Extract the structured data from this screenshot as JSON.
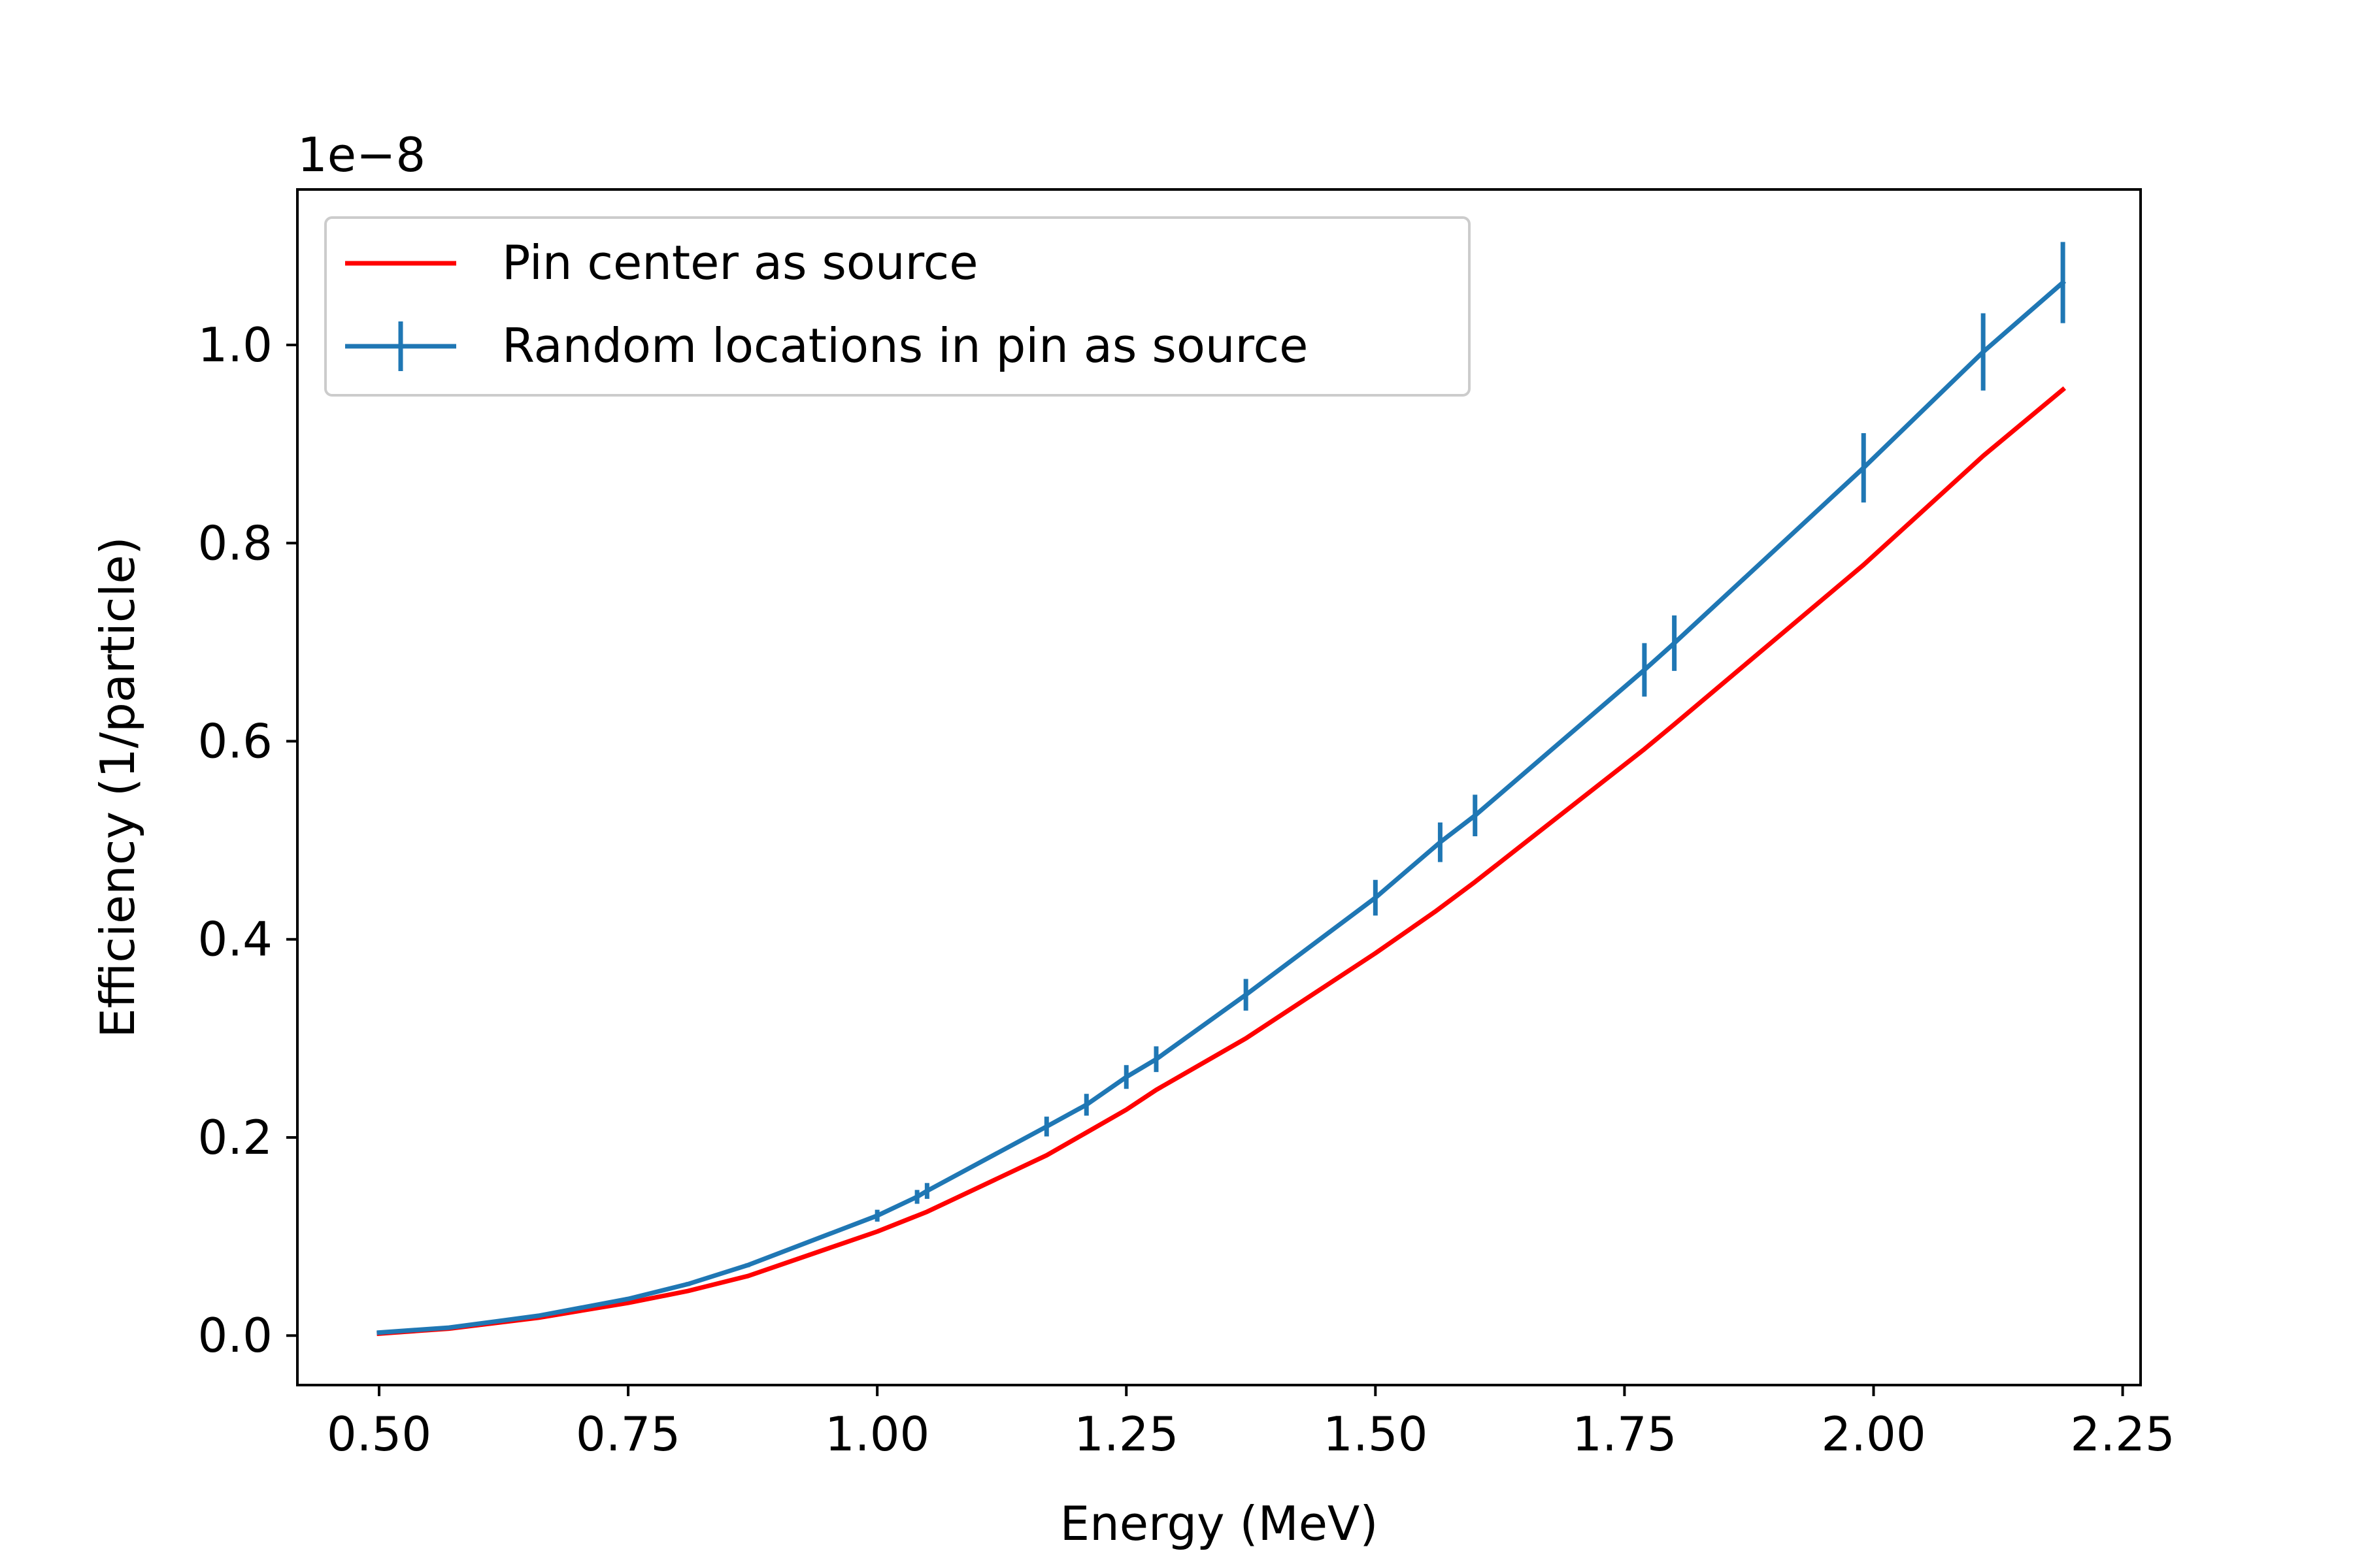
{
  "chart_data": {
    "type": "line",
    "title": "",
    "xlabel": "Energy (MeV)",
    "ylabel": "Efficiency (1/particle)",
    "y_offset_label": "1e−8",
    "xlim": [
      0.418,
      2.268
    ],
    "ylim": [
      -0.05,
      1.157
    ],
    "x_ticks": [
      0.5,
      0.75,
      1.0,
      1.25,
      1.5,
      1.75,
      2.0,
      2.25
    ],
    "x_tick_labels": [
      "0.50",
      "0.75",
      "1.00",
      "1.25",
      "1.50",
      "1.75",
      "2.00",
      "2.25"
    ],
    "y_ticks": [
      0.0,
      0.2,
      0.4,
      0.6,
      0.8,
      1.0
    ],
    "y_tick_labels": [
      "0.0",
      "0.2",
      "0.4",
      "0.6",
      "0.8",
      "1.0"
    ],
    "grid": false,
    "legend_position": "top-left",
    "series": [
      {
        "name": "Pin center as source",
        "color": "#ff0000",
        "errorbars": false,
        "x": [
          0.5,
          0.57,
          0.66,
          0.75,
          0.81,
          0.87,
          1.0,
          1.05,
          1.17,
          1.21,
          1.25,
          1.28,
          1.37,
          1.5,
          1.56,
          1.6,
          1.77,
          1.8,
          1.99,
          2.11,
          2.19
        ],
        "y": [
          0.002,
          0.007,
          0.018,
          0.033,
          0.045,
          0.06,
          0.105,
          0.125,
          0.182,
          0.205,
          0.228,
          0.248,
          0.3,
          0.386,
          0.428,
          0.458,
          0.592,
          0.617,
          0.778,
          0.888,
          0.955
        ]
      },
      {
        "name": "Random locations in pin as source",
        "color": "#1f77b4",
        "errorbars": true,
        "x": [
          0.5,
          0.57,
          0.66,
          0.75,
          0.81,
          0.87,
          1.0,
          1.04,
          1.05,
          1.17,
          1.21,
          1.25,
          1.28,
          1.37,
          1.5,
          1.565,
          1.6,
          1.77,
          1.8,
          1.99,
          2.11,
          2.19
        ],
        "y": [
          0.003,
          0.008,
          0.02,
          0.037,
          0.052,
          0.071,
          0.121,
          0.14,
          0.146,
          0.211,
          0.233,
          0.261,
          0.279,
          0.344,
          0.442,
          0.498,
          0.525,
          0.672,
          0.699,
          0.876,
          0.993,
          1.063
        ],
        "yerr": [
          0.001,
          0.001,
          0.001,
          0.002,
          0.002,
          0.002,
          0.006,
          0.007,
          0.008,
          0.01,
          0.011,
          0.012,
          0.013,
          0.016,
          0.018,
          0.02,
          0.021,
          0.027,
          0.028,
          0.035,
          0.039,
          0.041
        ]
      }
    ]
  }
}
